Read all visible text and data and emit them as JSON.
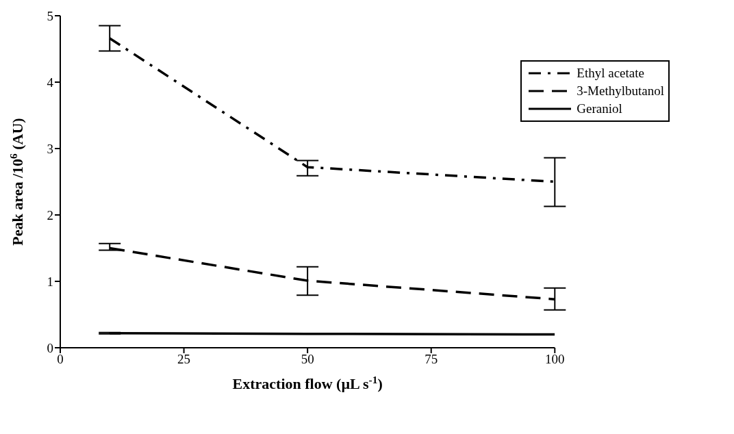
{
  "chart_data": {
    "type": "line",
    "xlabel": "Extraction flow (µL s$^{-1}$)",
    "ylabel": "Peak area /10$^{6}$ (AU)",
    "x": [
      10,
      50,
      100
    ],
    "series": [
      {
        "name": "Ethyl acetate",
        "color": "#000000",
        "line_style": "dashdot",
        "values": [
          4.66,
          2.72,
          2.5
        ],
        "errors": [
          [
            4.47,
            4.85
          ],
          [
            2.59,
            2.82
          ],
          [
            2.13,
            2.86
          ]
        ]
      },
      {
        "name": "3-Methylbutanol",
        "color": "#000000",
        "line_style": "dashed",
        "values": [
          1.5,
          1.01,
          0.73
        ],
        "errors": [
          [
            1.47,
            1.57
          ],
          [
            0.79,
            1.22
          ],
          [
            0.57,
            0.9
          ]
        ]
      },
      {
        "name": "Geraniol",
        "color": "#000000",
        "line_style": "solid",
        "values": [
          0.22,
          0.21,
          0.2
        ],
        "errors": [
          [
            0.21,
            0.23
          ],
          null,
          null
        ]
      }
    ],
    "xlim": [
      0,
      100
    ],
    "xticks": [
      0,
      25,
      50,
      75,
      100
    ],
    "ylim": [
      0,
      5
    ],
    "yticks": [
      0,
      1,
      2,
      3,
      4,
      5
    ],
    "grid": false,
    "legend": "top right",
    "marker": "none"
  }
}
